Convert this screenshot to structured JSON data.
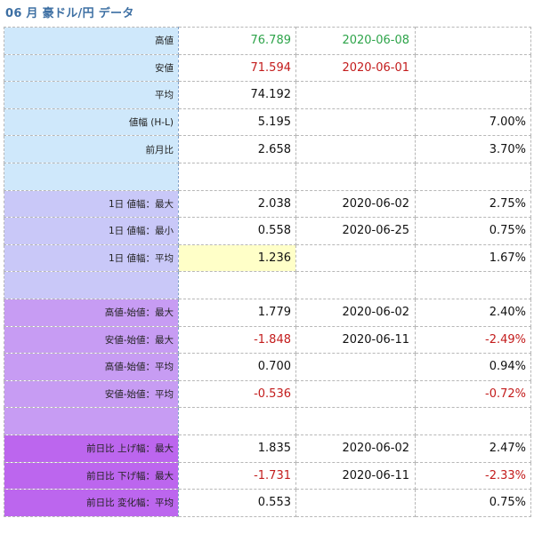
{
  "title": "06 月 豪ドル/円 データ",
  "colors": {
    "group1": "#cfe8fb",
    "group2": "#c9c8f8",
    "group3": "#c79cf3",
    "group4": "#bc66ee",
    "highlight": "#ffffc8",
    "green": "#2ea44a",
    "red": "#c31c1c",
    "title": "#3d6fa3"
  },
  "rows": [
    {
      "label": "高値",
      "value": "76.789",
      "date": "2020-06-08",
      "pct": "",
      "group": "g1",
      "vcolor": "green",
      "dcolor": "green"
    },
    {
      "label": "安値",
      "value": "71.594",
      "date": "2020-06-01",
      "pct": "",
      "group": "g1",
      "vcolor": "red",
      "dcolor": "red"
    },
    {
      "label": "平均",
      "value": "74.192",
      "date": "",
      "pct": "",
      "group": "g1"
    },
    {
      "label": "値幅 (H-L)",
      "value": "5.195",
      "date": "",
      "pct": "7.00%",
      "group": "g1"
    },
    {
      "label": "前月比",
      "value": "2.658",
      "date": "",
      "pct": "3.70%",
      "group": "g1"
    },
    {
      "label": "",
      "value": "",
      "date": "",
      "pct": "",
      "group": "g1"
    },
    {
      "label": "1日 値幅：最大",
      "value": "2.038",
      "date": "2020-06-02",
      "pct": "2.75%",
      "group": "g2"
    },
    {
      "label": "1日 値幅：最小",
      "value": "0.558",
      "date": "2020-06-25",
      "pct": "0.75%",
      "group": "g2"
    },
    {
      "label": "1日 値幅：平均",
      "value": "1.236",
      "date": "",
      "pct": "1.67%",
      "group": "g2",
      "hl": true
    },
    {
      "label": "",
      "value": "",
      "date": "",
      "pct": "",
      "group": "g2"
    },
    {
      "label": "高値-始値：最大",
      "value": "1.779",
      "date": "2020-06-02",
      "pct": "2.40%",
      "group": "g3"
    },
    {
      "label": "安値-始値：最大",
      "value": "-1.848",
      "date": "2020-06-11",
      "pct": "-2.49%",
      "group": "g3",
      "vcolor": "red",
      "pcolor": "red"
    },
    {
      "label": "高値-始値：平均",
      "value": "0.700",
      "date": "",
      "pct": "0.94%",
      "group": "g3"
    },
    {
      "label": "安値-始値：平均",
      "value": "-0.536",
      "date": "",
      "pct": "-0.72%",
      "group": "g3",
      "vcolor": "red",
      "pcolor": "red"
    },
    {
      "label": "",
      "value": "",
      "date": "",
      "pct": "",
      "group": "g3"
    },
    {
      "label": "前日比 上げ幅：最大",
      "value": "1.835",
      "date": "2020-06-02",
      "pct": "2.47%",
      "group": "g4"
    },
    {
      "label": "前日比 下げ幅：最大",
      "value": "-1.731",
      "date": "2020-06-11",
      "pct": "-2.33%",
      "group": "g4",
      "vcolor": "red",
      "pcolor": "red"
    },
    {
      "label": "前日比 変化幅：平均",
      "value": "0.553",
      "date": "",
      "pct": "0.75%",
      "group": "g4"
    }
  ]
}
